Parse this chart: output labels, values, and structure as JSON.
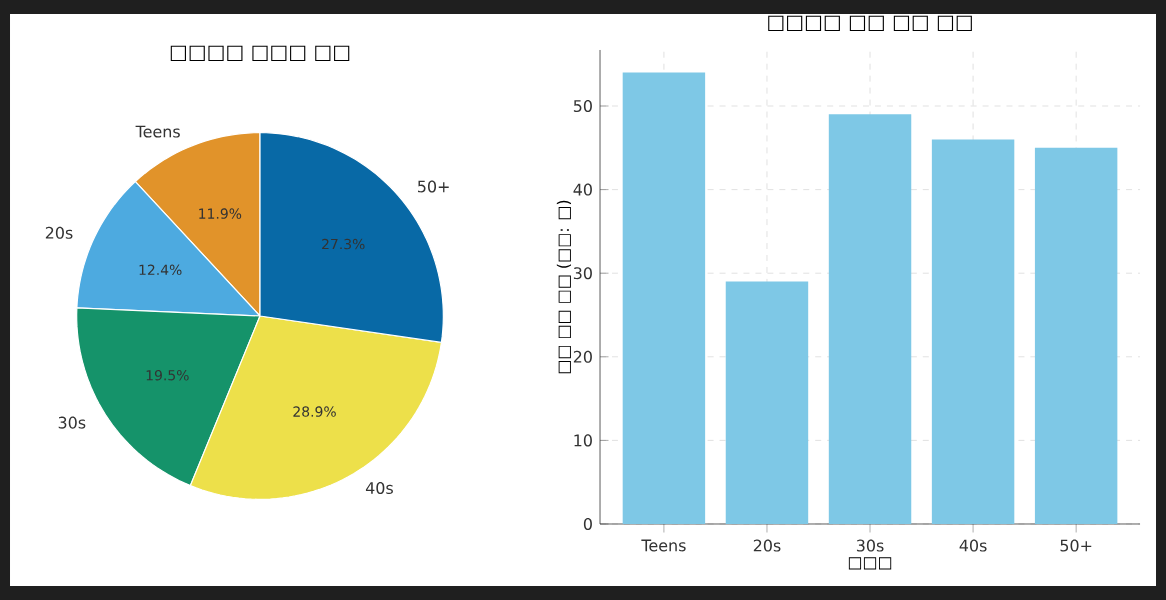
{
  "chart_data": [
    {
      "type": "pie",
      "title": "□□□□ □□□ □□",
      "categories": [
        "Teens",
        "20s",
        "30s",
        "40s",
        "50+"
      ],
      "values": [
        11.9,
        12.4,
        19.5,
        28.9,
        27.3
      ],
      "colors": [
        "#e1932a",
        "#4daae0",
        "#15936a",
        "#ede04a",
        "#0869a6"
      ],
      "value_labels": [
        "11.9%",
        "12.4%",
        "19.5%",
        "28.9%",
        "27.3%"
      ]
    },
    {
      "type": "bar",
      "title": "□□□□ □□ □□ □□",
      "xlabel": "□□□",
      "ylabel": "□□ □□ □□ (□□: □)",
      "categories": [
        "Teens",
        "20s",
        "30s",
        "40s",
        "50+"
      ],
      "values": [
        54,
        29,
        49,
        46,
        45
      ],
      "color": "#7ec8e6",
      "ylim": [
        0,
        56.7
      ],
      "yticks": [
        0,
        10,
        20,
        30,
        40,
        50
      ],
      "grid": true
    }
  ]
}
